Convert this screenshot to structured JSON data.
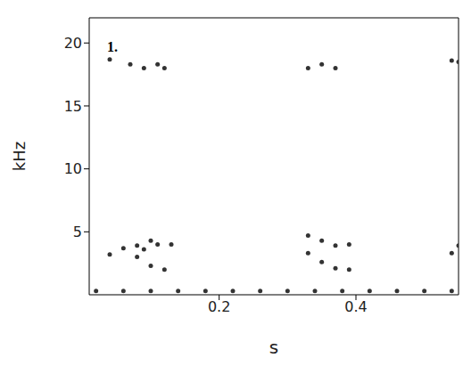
{
  "chart_data": {
    "type": "scatter",
    "title": "1.",
    "x_label": "s",
    "y_label": "kHz",
    "xlim": [
      0.01,
      0.55
    ],
    "xticks": [
      0.2,
      0.4
    ],
    "ylim": [
      0,
      22
    ],
    "yticks": [
      5,
      10,
      15,
      20
    ],
    "color": "#333333",
    "marker": "circle",
    "grid": false,
    "x": [
      0.04,
      0.06,
      0.08,
      0.09,
      0.08,
      0.1,
      0.12,
      0.1,
      0.11,
      0.13,
      0.04,
      0.07,
      0.09,
      0.11,
      0.12,
      0.33,
      0.35,
      0.37,
      0.39,
      0.33,
      0.35,
      0.37,
      0.39,
      0.33,
      0.35,
      0.37,
      0.54,
      0.55,
      0.54,
      0.55,
      0.02,
      0.06,
      0.1,
      0.14,
      0.18,
      0.22,
      0.26,
      0.3,
      0.34,
      0.38,
      0.42,
      0.46,
      0.5,
      0.54
    ],
    "values": [
      3.2,
      3.7,
      3.9,
      3.6,
      3.0,
      2.3,
      2.0,
      4.3,
      4.0,
      4.0,
      18.7,
      18.3,
      18.0,
      18.3,
      18.0,
      4.7,
      4.3,
      3.9,
      4.0,
      3.3,
      2.6,
      2.1,
      2.0,
      18.0,
      18.3,
      18.0,
      3.3,
      3.9,
      18.6,
      18.5,
      0.3,
      0.3,
      0.3,
      0.3,
      0.3,
      0.3,
      0.3,
      0.3,
      0.3,
      0.3,
      0.3,
      0.3,
      0.3,
      0.3
    ]
  }
}
